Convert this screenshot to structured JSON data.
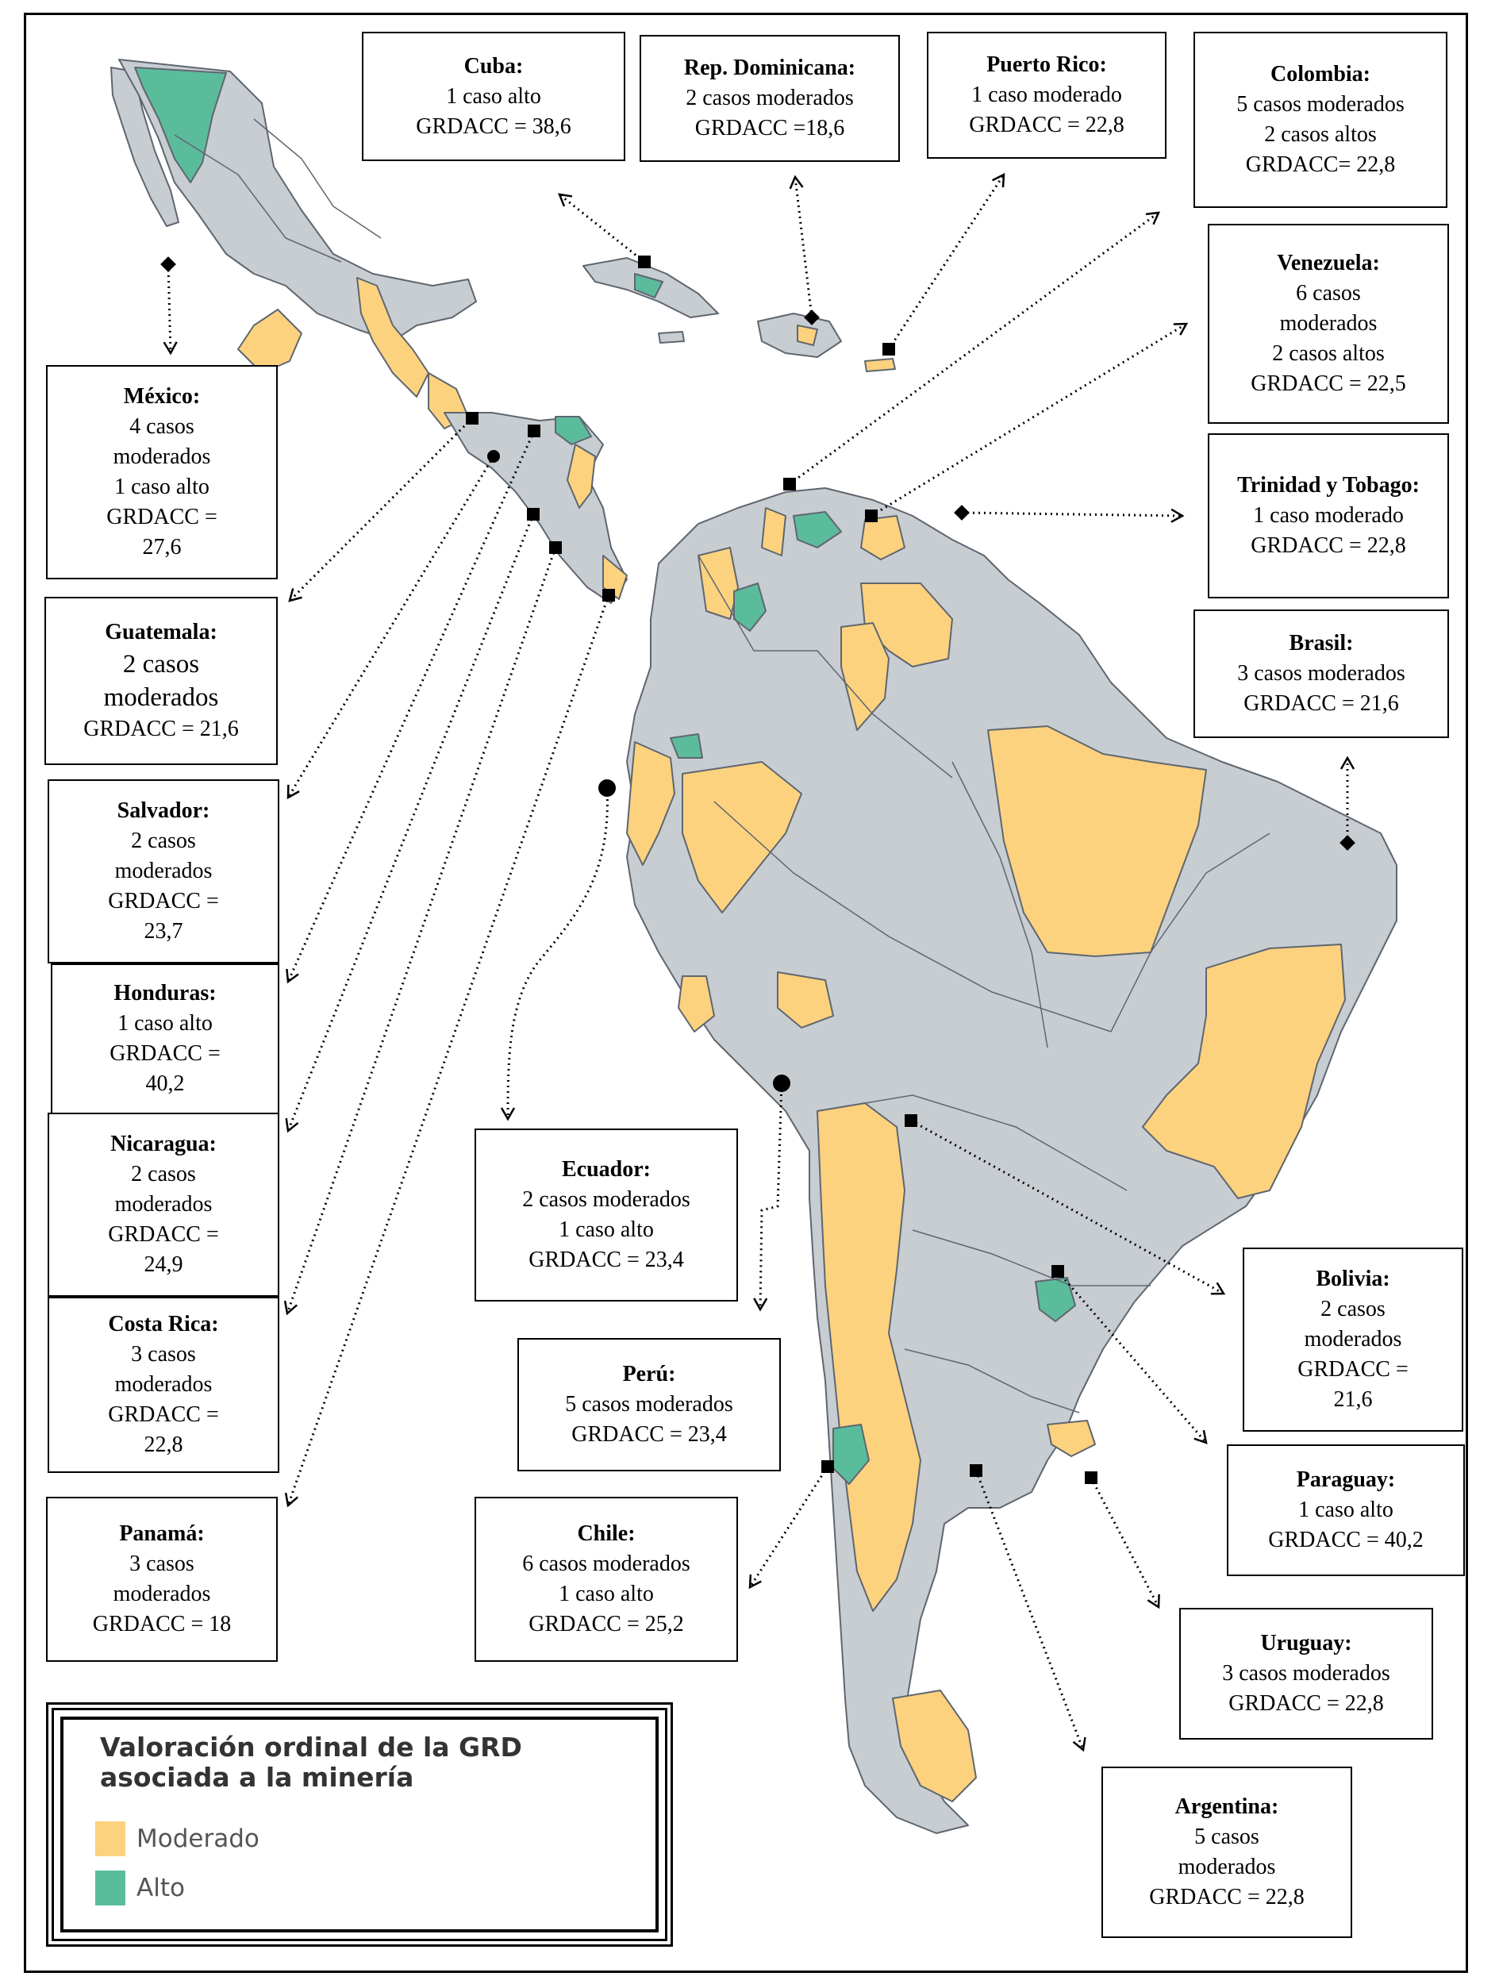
{
  "colors": {
    "base": "#c8cdd2",
    "border": "#5f6670",
    "moderado": "#fcd27f",
    "alto": "#5bbc9c",
    "ocean": "#ffffff"
  },
  "legend": {
    "title": "Valoración ordinal de la GRD asociada a la minería",
    "items": [
      {
        "label": "Moderado",
        "color": "#fcd27f"
      },
      {
        "label": "Alto",
        "color": "#5bbc9c"
      }
    ]
  },
  "countries": [
    {
      "id": "cuba",
      "name": "Cuba:",
      "lines": [
        "1 caso alto",
        "GRDACC = 38,6"
      ]
    },
    {
      "id": "rep-dominicana",
      "name": "Rep. Dominicana:",
      "lines": [
        "2 casos moderados",
        "GRDACC =18,6"
      ]
    },
    {
      "id": "puerto-rico",
      "name": "Puerto Rico:",
      "lines": [
        "1 caso moderado",
        "GRDACC = 22,8"
      ]
    },
    {
      "id": "colombia",
      "name": "Colombia:",
      "lines": [
        "5 casos moderados",
        "2 casos altos",
        "GRDACC= 22,8"
      ]
    },
    {
      "id": "venezuela",
      "name": "Venezuela:",
      "lines": [
        "6 casos",
        "moderados",
        "2 casos altos",
        "GRDACC = 22,5"
      ]
    },
    {
      "id": "trinidad",
      "name": "Trinidad y Tobago:",
      "lines": [
        "1 caso moderado",
        "GRDACC = 22,8"
      ]
    },
    {
      "id": "brasil",
      "name": "Brasil:",
      "lines": [
        "3 casos moderados",
        "GRDACC = 21,6"
      ]
    },
    {
      "id": "mexico",
      "name": "México:",
      "lines": [
        "4 casos",
        "moderados",
        "1 caso alto",
        "GRDACC =",
        "27,6"
      ]
    },
    {
      "id": "guatemala",
      "name": "Guatemala:",
      "lines": [
        "2 casos",
        "moderados",
        "GRDACC = 21,6"
      ]
    },
    {
      "id": "salvador",
      "name": "Salvador:",
      "lines": [
        "2 casos",
        "moderados",
        "GRDACC =",
        "23,7"
      ]
    },
    {
      "id": "honduras",
      "name": "Honduras:",
      "lines": [
        "1 caso alto",
        "GRDACC =",
        "40,2"
      ]
    },
    {
      "id": "nicaragua",
      "name": "Nicaragua:",
      "lines": [
        "2 casos",
        "moderados",
        "GRDACC =",
        "24,9"
      ]
    },
    {
      "id": "costa-rica",
      "name": "Costa Rica:",
      "lines": [
        "3 casos",
        "moderados",
        "GRDACC =",
        "22,8"
      ]
    },
    {
      "id": "panama",
      "name": "Panamá:",
      "lines": [
        "3 casos",
        "moderados",
        "GRDACC = 18"
      ]
    },
    {
      "id": "ecuador",
      "name": "Ecuador:",
      "lines": [
        "2 casos moderados",
        "1 caso alto",
        "GRDACC = 23,4"
      ]
    },
    {
      "id": "peru",
      "name": "Perú:",
      "lines": [
        "5 casos moderados",
        "GRDACC = 23,4"
      ]
    },
    {
      "id": "chile",
      "name": "Chile:",
      "lines": [
        "6 casos moderados",
        "1 caso alto",
        "GRDACC = 25,2"
      ]
    },
    {
      "id": "bolivia",
      "name": "Bolivia:",
      "lines": [
        "2 casos",
        "moderados",
        "GRDACC =",
        "21,6"
      ]
    },
    {
      "id": "paraguay",
      "name": "Paraguay:",
      "lines": [
        "1 caso alto",
        "GRDACC = 40,2"
      ]
    },
    {
      "id": "uruguay",
      "name": "Uruguay:",
      "lines": [
        "3 casos moderados",
        "GRDACC = 22,8"
      ]
    },
    {
      "id": "argentina",
      "name": "Argentina:",
      "lines": [
        "5 casos",
        "moderados",
        "GRDACC = 22,8"
      ]
    }
  ]
}
